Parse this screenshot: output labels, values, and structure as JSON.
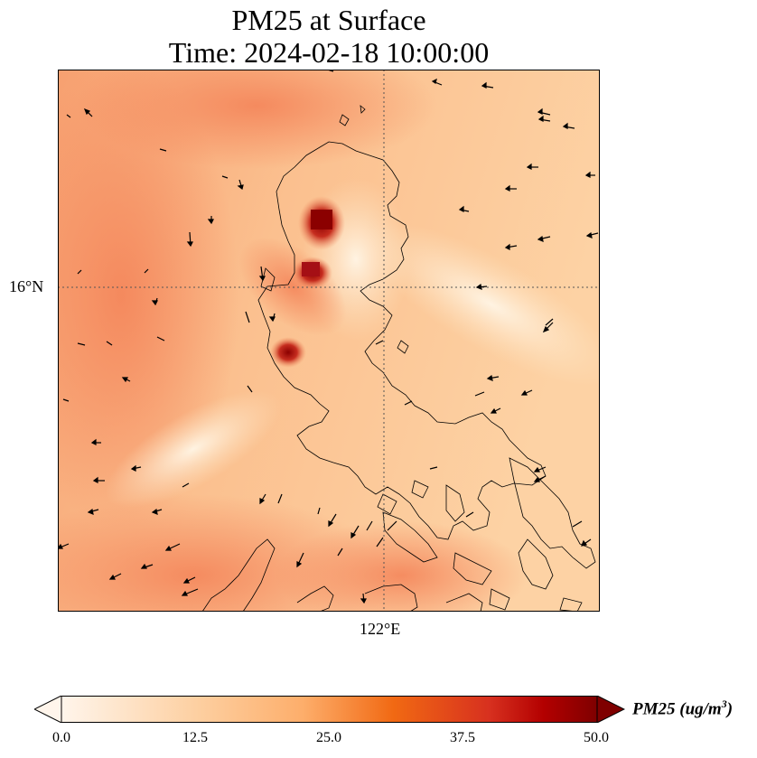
{
  "title": {
    "line1": "PM25 at Surface",
    "line2": "Time: 2024-02-18 10:00:00"
  },
  "axes": {
    "lat_label": "16°N",
    "lon_label": "122°E"
  },
  "colorbar": {
    "label_main": "PM25 (ug/m",
    "label_exp": "3",
    "label_close": ")",
    "min": 0,
    "max": 50,
    "ticks": [
      "0.0",
      "12.5",
      "25.0",
      "37.5",
      "50.0"
    ],
    "colors": [
      "#fff5eb",
      "#fdd0a2",
      "#fdae6b",
      "#f16913",
      "#d94801",
      "#a50f15",
      "#7f0000"
    ]
  }
}
